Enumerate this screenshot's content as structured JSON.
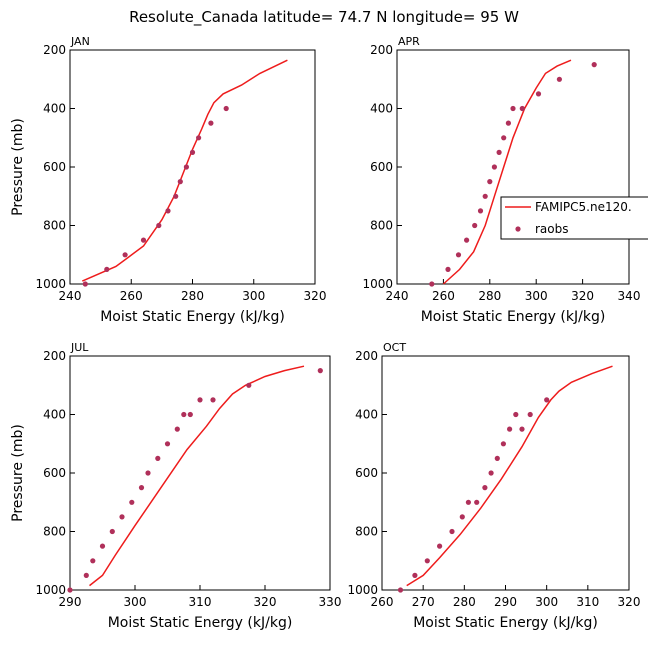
{
  "title": "Resolute_Canada   latitude= 74.7 N longitude= 95 W",
  "legend": {
    "model_label": "FAMIPC5.ne120.",
    "obs_label": "raobs",
    "line_color": "#ee1c1c",
    "marker_color": "#b0305a"
  },
  "chart_data": [
    {
      "type": "line",
      "panel": "JAN",
      "xlabel": "Moist Static Energy (kJ/kg)",
      "ylabel": "Pressure (mb)",
      "xlim": [
        240,
        320
      ],
      "xticks": [
        240,
        260,
        280,
        300,
        320
      ],
      "ylim": [
        1000,
        200
      ],
      "yticks": [
        200,
        400,
        600,
        800,
        1000
      ],
      "series": [
        {
          "name": "FAMIPC5.ne120.",
          "style": "line",
          "x": [
            244,
            255,
            264,
            270,
            274,
            277,
            280,
            283,
            285,
            287,
            290,
            296,
            302,
            311
          ],
          "y": [
            990,
            940,
            870,
            780,
            700,
            620,
            540,
            470,
            420,
            380,
            350,
            320,
            280,
            235
          ]
        },
        {
          "name": "raobs",
          "style": "markers",
          "x": [
            245,
            252,
            258,
            264,
            269,
            272,
            274.5,
            276,
            278,
            280,
            282,
            286,
            291
          ],
          "y": [
            1000,
            950,
            900,
            850,
            800,
            750,
            700,
            650,
            600,
            550,
            500,
            450,
            400
          ]
        }
      ]
    },
    {
      "type": "line",
      "panel": "APR",
      "xlabel": "Moist Static Energy (kJ/kg)",
      "ylabel": "",
      "xlim": [
        240,
        340
      ],
      "xticks": [
        240,
        260,
        280,
        300,
        320,
        340
      ],
      "ylim": [
        1000,
        200
      ],
      "yticks": [
        200,
        400,
        600,
        800,
        1000
      ],
      "series": [
        {
          "name": "FAMIPC5.ne120.",
          "style": "line",
          "x": [
            260,
            267,
            273,
            278,
            282,
            286,
            290,
            295,
            300,
            304,
            309,
            315
          ],
          "y": [
            1000,
            950,
            890,
            800,
            700,
            600,
            500,
            400,
            330,
            280,
            255,
            235
          ]
        },
        {
          "name": "raobs",
          "style": "markers",
          "x": [
            255,
            262,
            266.5,
            270,
            273.5,
            276,
            278,
            280,
            282,
            284,
            286,
            288,
            290,
            294,
            301,
            310,
            325
          ],
          "y": [
            1000,
            950,
            900,
            850,
            800,
            750,
            700,
            650,
            600,
            550,
            500,
            450,
            400,
            400,
            350,
            300,
            250
          ]
        }
      ]
    },
    {
      "type": "line",
      "panel": "JUL",
      "xlabel": "Moist Static Energy (kJ/kg)",
      "ylabel": "Pressure (mb)",
      "xlim": [
        290,
        330
      ],
      "xticks": [
        290,
        300,
        310,
        320,
        330
      ],
      "ylim": [
        1000,
        200
      ],
      "yticks": [
        200,
        400,
        600,
        800,
        1000
      ],
      "series": [
        {
          "name": "FAMIPC5.ne120.",
          "style": "line",
          "x": [
            293,
            295,
            297,
            300,
            304,
            308,
            311,
            313,
            315,
            317,
            320,
            323,
            326
          ],
          "y": [
            985,
            950,
            880,
            780,
            650,
            520,
            440,
            380,
            330,
            300,
            270,
            250,
            235
          ]
        },
        {
          "name": "raobs",
          "style": "markers",
          "x": [
            290,
            292.5,
            293.5,
            295,
            296.5,
            298,
            299.5,
            301,
            302,
            303.5,
            305,
            306.5,
            307.5,
            308.5,
            310,
            312,
            317.5,
            328.5
          ],
          "y": [
            1000,
            950,
            900,
            850,
            800,
            750,
            700,
            650,
            600,
            550,
            500,
            450,
            400,
            400,
            350,
            350,
            300,
            250
          ]
        }
      ]
    },
    {
      "type": "line",
      "panel": "OCT",
      "xlabel": "Moist Static Energy (kJ/kg)",
      "ylabel": "",
      "xlim": [
        260,
        320
      ],
      "xticks": [
        260,
        270,
        280,
        290,
        300,
        310,
        320
      ],
      "ylim": [
        1000,
        200
      ],
      "yticks": [
        200,
        400,
        600,
        800,
        1000
      ],
      "series": [
        {
          "name": "FAMIPC5.ne120.",
          "style": "line",
          "x": [
            266,
            270,
            274,
            279,
            284,
            289,
            294,
            298,
            301,
            303,
            306,
            311,
            316
          ],
          "y": [
            985,
            950,
            890,
            810,
            720,
            620,
            510,
            410,
            350,
            320,
            290,
            260,
            235
          ]
        },
        {
          "name": "raobs",
          "style": "markers",
          "x": [
            264.5,
            268,
            271,
            274,
            277,
            279.5,
            281,
            283,
            285,
            286.5,
            288,
            289.5,
            291,
            292.5,
            294,
            296,
            300
          ],
          "y": [
            1000,
            950,
            900,
            850,
            800,
            750,
            700,
            700,
            650,
            600,
            550,
            500,
            450,
            400,
            450,
            400,
            350
          ]
        }
      ]
    }
  ]
}
